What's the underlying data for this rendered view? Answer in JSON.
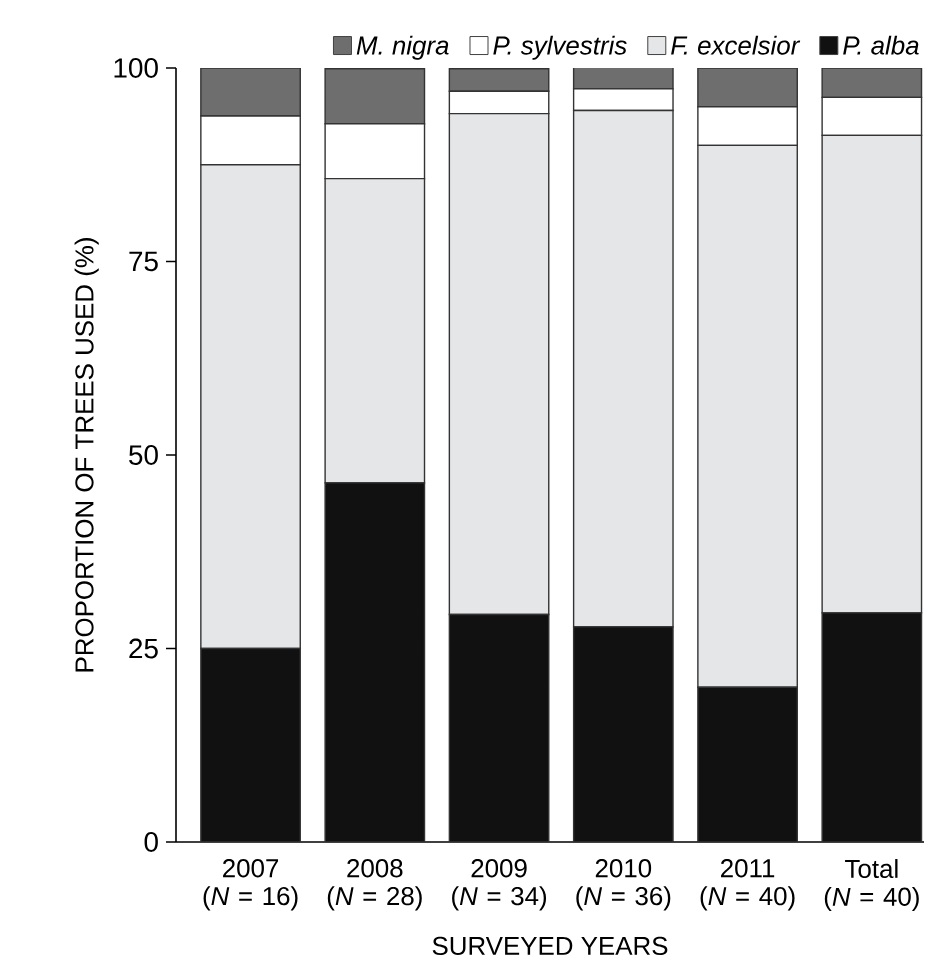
{
  "chart_data": {
    "type": "bar",
    "stacked": true,
    "xlabel": "SURVEYED YEARS",
    "ylabel": "PROPORTION OF TREES USED (%)",
    "categories": [
      "2007 (*N* = 16)",
      "2008 (*N* = 28)",
      "2009 (*N* = 34)",
      "2010 (*N* = 36)",
      "2011 (*N* = 40)",
      "Total (*N* = 40)"
    ],
    "series": [
      {
        "name": "P. alba",
        "color": "#111111",
        "values": [
          25,
          46.4,
          29.4,
          27.8,
          20,
          29.6
        ]
      },
      {
        "name": "F. excelsior",
        "color": "#e4e6e8",
        "values": [
          62.5,
          39.3,
          64.7,
          66.7,
          70,
          61.7
        ]
      },
      {
        "name": "P. sylvestris",
        "color": "#ffffff",
        "values": [
          6.3,
          7.1,
          2.9,
          2.8,
          5,
          4.9
        ]
      },
      {
        "name": "M. nigra",
        "color": "#6e6e6e",
        "values": [
          6.2,
          7.1,
          2.9,
          2.8,
          5,
          3.8
        ]
      }
    ],
    "ylim": [
      0,
      100
    ],
    "yticks": [
      0,
      25,
      50,
      75,
      100
    ],
    "legend": "top"
  }
}
